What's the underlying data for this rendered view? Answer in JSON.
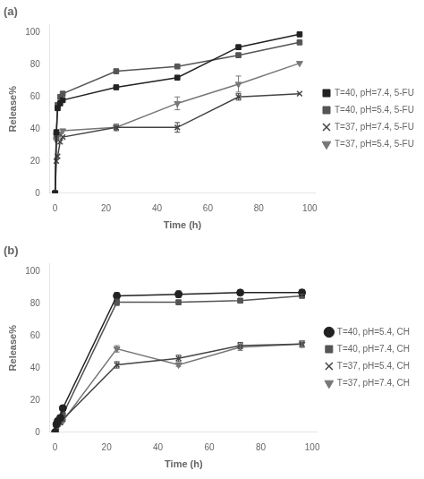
{
  "chart_data": [
    {
      "type": "line",
      "title": "(a)",
      "x_label": "Time (h)",
      "y_label": "Release%",
      "x": [
        0,
        0.5,
        1,
        2,
        3,
        24,
        48,
        72,
        96
      ],
      "xlim": [
        -2,
        102
      ],
      "ylim": [
        0,
        105
      ],
      "xticks": [
        0,
        20,
        40,
        60,
        80,
        100
      ],
      "yticks": [
        0,
        20,
        40,
        60,
        80,
        100
      ],
      "grid": false,
      "legend": "right",
      "series": [
        {
          "name": "T=40, pH=7.4, 5-FU",
          "color": "#222222",
          "marker": "square",
          "line_style": "solid",
          "values": [
            0,
            38,
            53,
            56,
            58,
            66,
            72,
            91,
            99
          ],
          "yerr": [
            0,
            0,
            0,
            0,
            0,
            0,
            0,
            0,
            0
          ]
        },
        {
          "name": "T=40, pH=5.4, 5-FU",
          "color": "#555555",
          "marker": "square",
          "line_style": "solid",
          "values": [
            0,
            36,
            55,
            60,
            62,
            76,
            79,
            86,
            94
          ],
          "yerr": [
            0,
            0,
            0,
            0,
            0,
            0,
            0,
            0,
            0
          ]
        },
        {
          "name": "T=37, pH=7.4, 5-FU",
          "color": "#444444",
          "marker": "x",
          "line_style": "solid",
          "values": [
            0,
            20,
            23,
            32,
            35,
            41,
            41,
            60,
            62
          ],
          "yerr": [
            0,
            0,
            0,
            0,
            0,
            2,
            3,
            2,
            0
          ]
        },
        {
          "name": "T=37, pH=5.4, 5-FU",
          "color": "#777777",
          "marker": "triangle_down",
          "line_style": "solid",
          "values": [
            0,
            33,
            36,
            37,
            39,
            41,
            56,
            68,
            81
          ],
          "yerr": [
            0,
            0,
            0,
            0,
            0,
            0,
            4,
            5,
            0
          ]
        }
      ]
    },
    {
      "type": "line",
      "title": "(b)",
      "x_label": "Time (h)",
      "y_label": "Release%",
      "x": [
        0,
        0.5,
        1,
        2,
        3,
        24,
        48,
        72,
        96
      ],
      "xlim": [
        -2,
        102
      ],
      "ylim": [
        0,
        105
      ],
      "xticks": [
        0,
        20,
        40,
        60,
        80,
        100
      ],
      "yticks": [
        0,
        20,
        40,
        60,
        80,
        100
      ],
      "grid": false,
      "legend": "right",
      "series": [
        {
          "name": "T=40, pH=5.4, CH",
          "color": "#222222",
          "marker": "circle",
          "line_style": "solid",
          "values": [
            0,
            5,
            7,
            9,
            15,
            85,
            86,
            87,
            87
          ],
          "yerr": [
            0,
            0,
            0,
            0,
            0,
            2,
            2,
            1,
            2
          ]
        },
        {
          "name": "T=40, pH=7.4, CH",
          "color": "#555555",
          "marker": "square",
          "line_style": "solid",
          "values": [
            0,
            4,
            6,
            8,
            11,
            81,
            81,
            82,
            85
          ],
          "yerr": [
            0,
            0,
            0,
            0,
            0,
            2,
            1,
            1,
            1
          ]
        },
        {
          "name": "T=37, pH=5.4, CH",
          "color": "#444444",
          "marker": "x",
          "line_style": "solid",
          "values": [
            0,
            3,
            5,
            6,
            8,
            42,
            46,
            54,
            55
          ],
          "yerr": [
            0,
            0,
            0,
            0,
            0,
            2,
            2,
            2,
            2
          ]
        },
        {
          "name": "T=37, pH=7.4, CH",
          "color": "#777777",
          "marker": "triangle_down",
          "line_style": "solid",
          "values": [
            0,
            3,
            5,
            6,
            7,
            52,
            42,
            53,
            55
          ],
          "yerr": [
            0,
            0,
            0,
            0,
            0,
            2,
            1,
            2,
            2
          ]
        }
      ]
    }
  ]
}
